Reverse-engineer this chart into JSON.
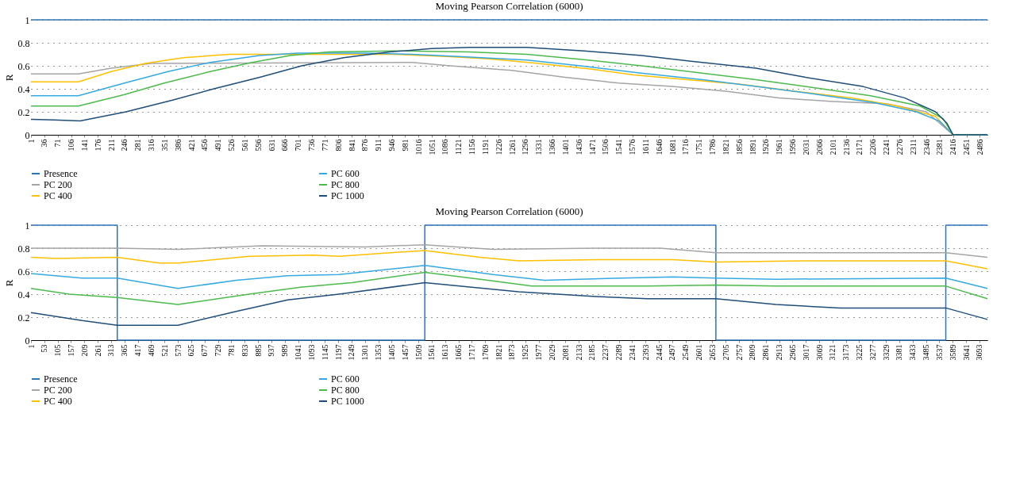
{
  "chart_data": [
    {
      "type": "line",
      "title": "Moving Pearson Correlation (6000)",
      "ylabel": "R",
      "xlim": [
        1,
        2506
      ],
      "ylim": [
        0,
        1
      ],
      "yticks": [
        0,
        0.2,
        0.4,
        0.6,
        0.8,
        1
      ],
      "xticks": [
        1,
        36,
        71,
        106,
        141,
        176,
        211,
        246,
        281,
        316,
        351,
        386,
        421,
        456,
        491,
        526,
        561,
        596,
        631,
        666,
        701,
        736,
        771,
        806,
        841,
        876,
        911,
        946,
        981,
        1016,
        1051,
        1086,
        1121,
        1156,
        1191,
        1226,
        1261,
        1296,
        1331,
        1366,
        1401,
        1436,
        1471,
        1506,
        1541,
        1576,
        1611,
        1646,
        1681,
        1716,
        1751,
        1786,
        1821,
        1856,
        1891,
        1926,
        1961,
        1996,
        2031,
        2066,
        2101,
        2136,
        2171,
        2206,
        2241,
        2276,
        2311,
        2346,
        2381,
        2416,
        2451,
        2486
      ],
      "grid": "y",
      "legend": "bottom",
      "series": [
        {
          "name": "Presence",
          "color": "#2e75b6",
          "x": [
            1,
            2506
          ],
          "values": [
            1,
            1
          ]
        },
        {
          "name": "PC 200",
          "color": "#a5a5a5",
          "x": [
            1,
            125,
            211,
            316,
            1000,
            1100,
            1260,
            1400,
            1540,
            1680,
            1820,
            1960,
            2100,
            2240,
            2346,
            2416,
            2506
          ],
          "values": [
            0.53,
            0.53,
            0.58,
            0.62,
            0.63,
            0.6,
            0.56,
            0.5,
            0.45,
            0.42,
            0.38,
            0.32,
            0.29,
            0.27,
            0.2,
            0,
            0
          ]
        },
        {
          "name": "PC 400",
          "color": "#ffc000",
          "x": [
            1,
            125,
            211,
            300,
            400,
            520,
            736,
            950,
            1100,
            1200,
            1330,
            1470,
            1580,
            1720,
            1860,
            2000,
            2150,
            2270,
            2370,
            2416,
            2506
          ],
          "values": [
            0.46,
            0.46,
            0.55,
            0.62,
            0.67,
            0.7,
            0.7,
            0.7,
            0.68,
            0.66,
            0.62,
            0.57,
            0.52,
            0.48,
            0.44,
            0.38,
            0.32,
            0.25,
            0.16,
            0,
            0
          ]
        },
        {
          "name": "PC 600",
          "color": "#36a9e1",
          "x": [
            1,
            125,
            246,
            360,
            470,
            600,
            700,
            880,
            1000,
            1130,
            1300,
            1440,
            1590,
            1760,
            1900,
            2040,
            2210,
            2320,
            2380,
            2416,
            2506
          ],
          "values": [
            0.34,
            0.34,
            0.45,
            0.55,
            0.63,
            0.69,
            0.71,
            0.71,
            0.7,
            0.68,
            0.65,
            0.6,
            0.54,
            0.48,
            0.42,
            0.36,
            0.28,
            0.2,
            0.12,
            0,
            0
          ]
        },
        {
          "name": "PC 800",
          "color": "#4cba4c",
          "x": [
            1,
            125,
            246,
            350,
            470,
            580,
            680,
            780,
            950,
            1150,
            1300,
            1460,
            1600,
            1750,
            1900,
            2050,
            2200,
            2330,
            2390,
            2416,
            2506
          ],
          "values": [
            0.25,
            0.25,
            0.35,
            0.45,
            0.55,
            0.63,
            0.69,
            0.72,
            0.73,
            0.72,
            0.7,
            0.65,
            0.6,
            0.54,
            0.48,
            0.41,
            0.34,
            0.25,
            0.14,
            0,
            0
          ]
        },
        {
          "name": "PC 1000",
          "color": "#1f4e79",
          "x": [
            1,
            60,
            130,
            250,
            370,
            480,
            600,
            710,
            820,
            940,
            1050,
            1150,
            1300,
            1450,
            1600,
            1730,
            1900,
            2030,
            2180,
            2290,
            2370,
            2400,
            2416,
            2506
          ],
          "values": [
            0.135,
            0.13,
            0.12,
            0.2,
            0.3,
            0.4,
            0.5,
            0.6,
            0.67,
            0.72,
            0.75,
            0.76,
            0.76,
            0.73,
            0.69,
            0.64,
            0.58,
            0.5,
            0.42,
            0.32,
            0.2,
            0.1,
            0,
            0
          ]
        }
      ]
    },
    {
      "type": "line",
      "title": "Moving Pearson Correlation (6000)",
      "ylabel": "R",
      "xlim": [
        1,
        3724
      ],
      "ylim": [
        0,
        1
      ],
      "yticks": [
        0,
        0.2,
        0.4,
        0.6,
        0.8,
        1
      ],
      "xticks": [
        1,
        53,
        105,
        157,
        209,
        261,
        313,
        365,
        417,
        469,
        521,
        573,
        625,
        677,
        729,
        781,
        833,
        885,
        937,
        989,
        1041,
        1093,
        1145,
        1197,
        1249,
        1301,
        1353,
        1405,
        1457,
        1509,
        1561,
        1613,
        1665,
        1717,
        1769,
        1821,
        1873,
        1925,
        1977,
        2029,
        2081,
        2133,
        2185,
        2237,
        2289,
        2341,
        2393,
        2445,
        2497,
        2549,
        2601,
        2653,
        2705,
        2757,
        2809,
        2861,
        2913,
        2965,
        3017,
        3069,
        3121,
        3173,
        3225,
        3277,
        3329,
        3381,
        3433,
        3485,
        3537,
        3589,
        3641,
        3693
      ],
      "grid": "y",
      "legend": "bottom",
      "series": [
        {
          "name": "Presence",
          "color": "#2e75b6",
          "x": [
            1,
            337,
            337,
            1534,
            1534,
            2667,
            2667,
            3562,
            3562,
            3724
          ],
          "values": [
            1,
            1,
            0,
            0,
            1,
            1,
            0,
            0,
            1,
            1
          ]
        },
        {
          "name": "PC 200",
          "color": "#a5a5a5",
          "x": [
            1,
            337,
            573,
            900,
            1300,
            1534,
            1800,
            2200,
            2450,
            2667,
            3562,
            3724
          ],
          "values": [
            0.8,
            0.8,
            0.79,
            0.82,
            0.81,
            0.83,
            0.79,
            0.8,
            0.8,
            0.76,
            0.76,
            0.72
          ]
        },
        {
          "name": "PC 400",
          "color": "#ffc000",
          "x": [
            1,
            100,
            337,
            500,
            573,
            850,
            1100,
            1200,
            1534,
            1750,
            1900,
            2200,
            2500,
            2667,
            3000,
            3562,
            3724
          ],
          "values": [
            0.72,
            0.71,
            0.72,
            0.67,
            0.67,
            0.73,
            0.74,
            0.73,
            0.78,
            0.72,
            0.69,
            0.7,
            0.7,
            0.68,
            0.69,
            0.69,
            0.62
          ]
        },
        {
          "name": "PC 600",
          "color": "#36a9e1",
          "x": [
            1,
            200,
            337,
            573,
            800,
            1000,
            1200,
            1534,
            1800,
            2000,
            2300,
            2500,
            2667,
            2900,
            3562,
            3724
          ],
          "values": [
            0.58,
            0.54,
            0.54,
            0.45,
            0.52,
            0.56,
            0.57,
            0.65,
            0.57,
            0.52,
            0.54,
            0.55,
            0.54,
            0.53,
            0.54,
            0.45
          ]
        },
        {
          "name": "PC 800",
          "color": "#4cba4c",
          "x": [
            1,
            150,
            337,
            573,
            850,
            1050,
            1250,
            1534,
            1780,
            1950,
            2400,
            2667,
            2900,
            3562,
            3724
          ],
          "values": [
            0.45,
            0.4,
            0.37,
            0.31,
            0.4,
            0.46,
            0.5,
            0.59,
            0.52,
            0.47,
            0.47,
            0.48,
            0.47,
            0.47,
            0.36
          ]
        },
        {
          "name": "PC 1000",
          "color": "#1f4e79",
          "x": [
            1,
            200,
            337,
            573,
            800,
            1000,
            1200,
            1534,
            1900,
            2200,
            2400,
            2667,
            2900,
            3150,
            3562,
            3724
          ],
          "values": [
            0.24,
            0.17,
            0.13,
            0.13,
            0.25,
            0.35,
            0.4,
            0.5,
            0.42,
            0.38,
            0.36,
            0.36,
            0.31,
            0.28,
            0.28,
            0.18
          ]
        }
      ]
    }
  ]
}
